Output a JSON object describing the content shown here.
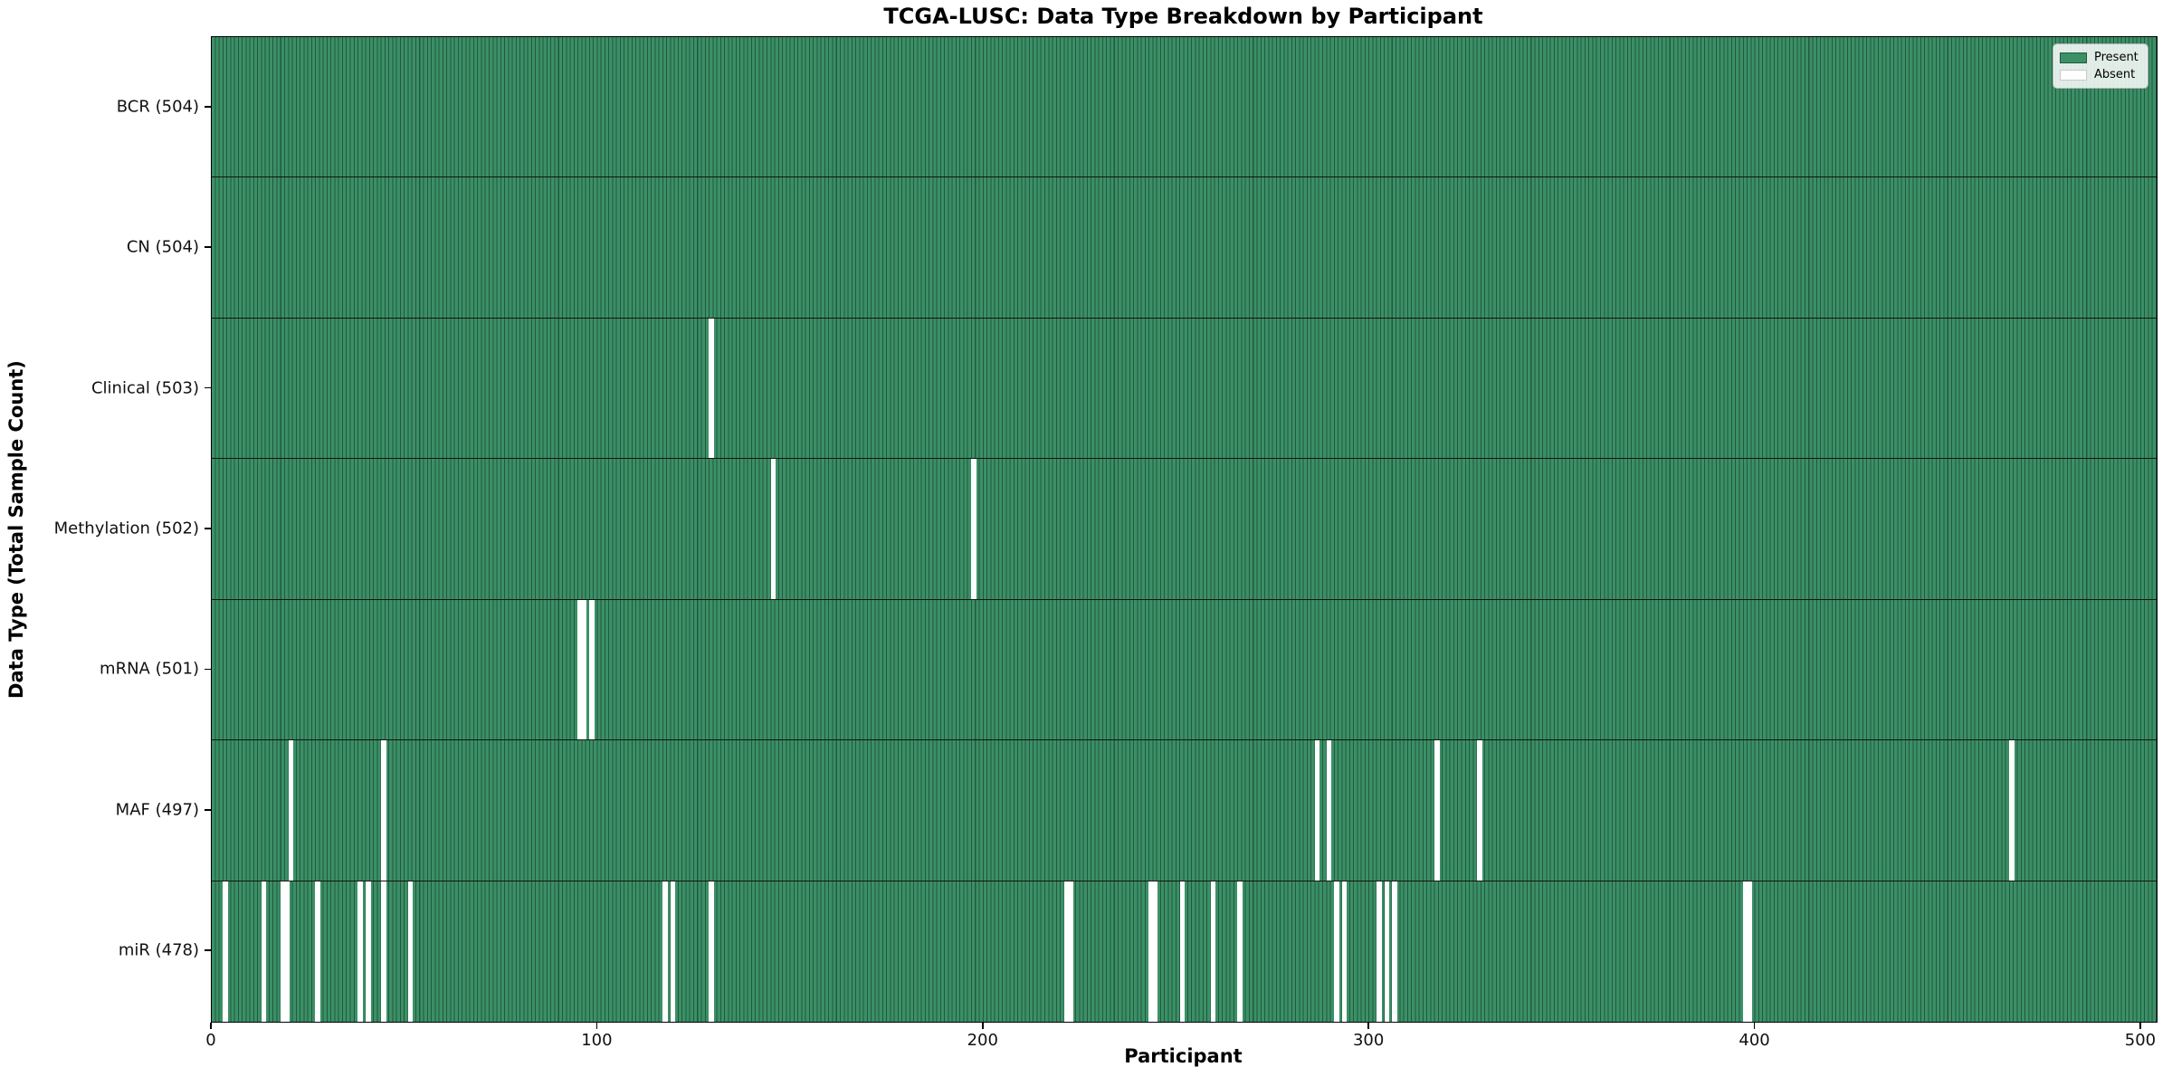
{
  "title": "TCGA-LUSC: Data Type Breakdown by Participant",
  "xlabel": "Participant",
  "ylabel": "Data Type (Total Sample Count)",
  "legend": {
    "present_label": "Present",
    "absent_label": "Absent"
  },
  "colors": {
    "present": "#3b9066",
    "bar_edge": "#225840",
    "absent": "#ffffff",
    "row_border": "#15150f",
    "legend_border": "#b4b4b4"
  },
  "chart_data": {
    "type": "heatmap",
    "title": "TCGA-LUSC: Data Type Breakdown by Participant",
    "xlabel": "Participant",
    "ylabel": "Data Type (Total Sample Count)",
    "legend_entries": [
      "Present",
      "Absent"
    ],
    "legend_position": "upper right",
    "grid": false,
    "total_participants": 504,
    "x_range": [
      0,
      504
    ],
    "x_ticks": [
      0,
      100,
      200,
      300,
      400,
      500
    ],
    "rows": [
      {
        "label": "BCR (504)",
        "data_type": "BCR",
        "present_count": 504,
        "absent_participants": []
      },
      {
        "label": "CN (504)",
        "data_type": "CN",
        "present_count": 504,
        "absent_participants": []
      },
      {
        "label": "Clinical (503)",
        "data_type": "Clinical",
        "present_count": 503,
        "absent_participants": [
          129
        ]
      },
      {
        "label": "Methylation (502)",
        "data_type": "Methylation",
        "present_count": 502,
        "absent_participants": [
          145,
          197
        ]
      },
      {
        "label": "mRNA (501)",
        "data_type": "mRNA",
        "present_count": 501,
        "absent_participants": [
          95,
          96,
          98
        ]
      },
      {
        "label": "MAF (497)",
        "data_type": "MAF",
        "present_count": 497,
        "absent_participants": [
          20,
          44,
          286,
          289,
          317,
          328,
          466
        ]
      },
      {
        "label": "miR (478)",
        "data_type": "miR",
        "present_count": 478,
        "absent_participants": [
          3,
          13,
          18,
          19,
          27,
          38,
          40,
          44,
          51,
          117,
          119,
          129,
          221,
          222,
          243,
          244,
          251,
          259,
          266,
          291,
          293,
          302,
          304,
          306,
          397,
          398
        ]
      }
    ]
  }
}
